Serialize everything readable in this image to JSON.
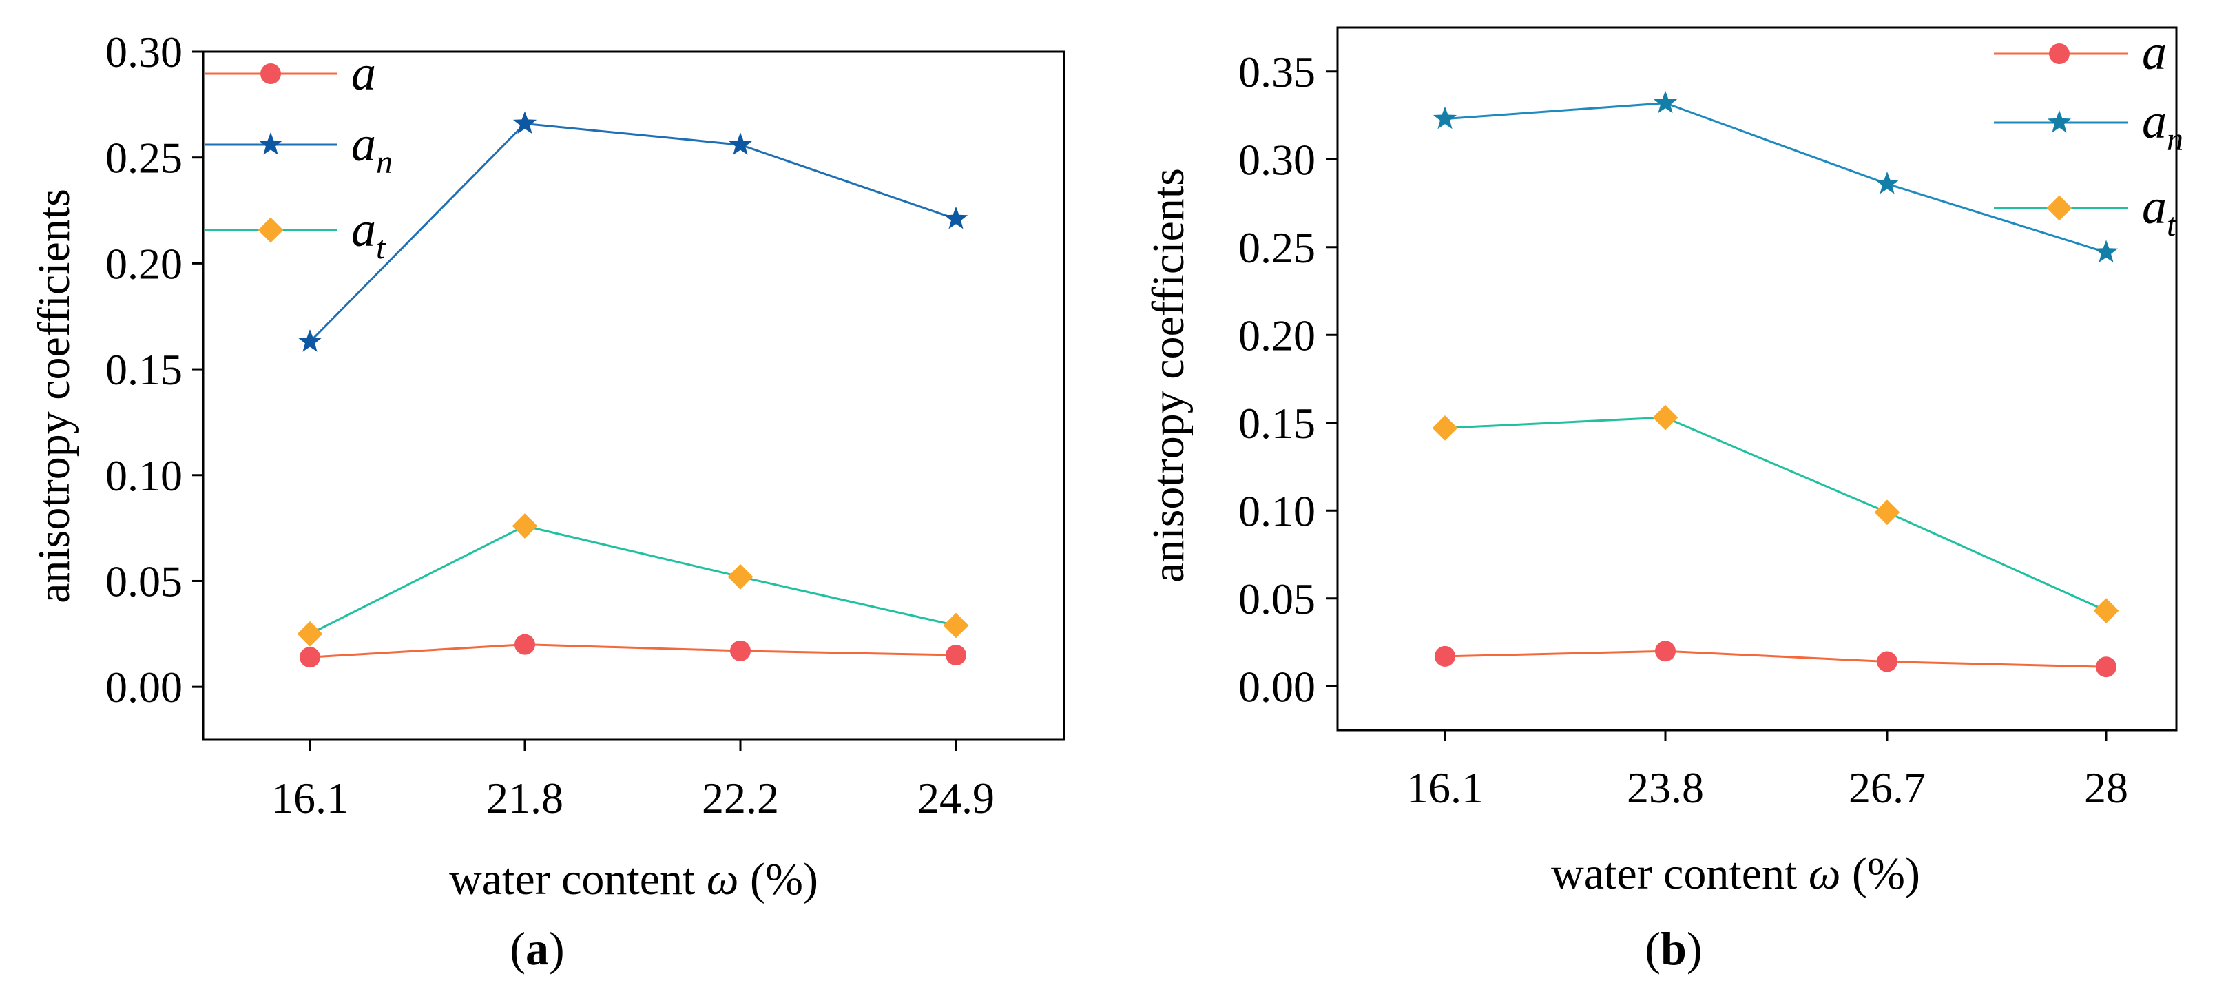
{
  "chart_data": [
    {
      "type": "line",
      "panel": "a",
      "categories": [
        "16.1",
        "21.8",
        "22.2",
        "24.9"
      ],
      "series": [
        {
          "name": "a",
          "sub": "",
          "color": "#f4683c",
          "marker_color": "#f2545b",
          "marker": "circle",
          "values": [
            0.014,
            0.02,
            0.017,
            0.015
          ]
        },
        {
          "name": "a",
          "sub": "n",
          "color": "#1f6fb4",
          "marker_color": "#0d57a3",
          "marker": "star",
          "values": [
            0.163,
            0.266,
            0.256,
            0.221
          ]
        },
        {
          "name": "a",
          "sub": "t",
          "color": "#20c0a0",
          "marker_color": "#f9a82b",
          "marker": "diamond",
          "values": [
            0.025,
            0.076,
            0.052,
            0.029
          ]
        }
      ],
      "yticks": [
        "0.00",
        "0.05",
        "0.10",
        "0.15",
        "0.20",
        "0.25",
        "0.30"
      ],
      "ylim": [
        -0.025,
        0.3
      ],
      "xlabel_prefix": "water content ",
      "xlabel_symbol": "ω",
      "xlabel_suffix": " (%)",
      "ylabel": "anisotropy coefficients",
      "caption_open": "(",
      "caption_letter": "a",
      "caption_close": ")",
      "legend_position": "top-left"
    },
    {
      "type": "line",
      "panel": "b",
      "categories": [
        "16.1",
        "23.8",
        "26.7",
        "28"
      ],
      "series": [
        {
          "name": "a",
          "sub": "",
          "color": "#f4683c",
          "marker_color": "#f2545b",
          "marker": "circle",
          "values": [
            0.017,
            0.02,
            0.014,
            0.011
          ]
        },
        {
          "name": "a",
          "sub": "n",
          "color": "#1f8ac0",
          "marker_color": "#137fa8",
          "marker": "star",
          "values": [
            0.323,
            0.332,
            0.286,
            0.247
          ]
        },
        {
          "name": "a",
          "sub": "t",
          "color": "#20c0a0",
          "marker_color": "#f9a82b",
          "marker": "diamond",
          "values": [
            0.147,
            0.153,
            0.099,
            0.043
          ]
        }
      ],
      "yticks": [
        "0.00",
        "0.05",
        "0.10",
        "0.15",
        "0.20",
        "0.25",
        "0.30",
        "0.35"
      ],
      "ylim": [
        -0.025,
        0.375
      ],
      "xlabel_prefix": "water content ",
      "xlabel_symbol": "ω",
      "xlabel_suffix": " (%)",
      "ylabel": "anisotropy coefficients",
      "caption_open": "(",
      "caption_letter": "b",
      "caption_close": ")",
      "legend_position": "top-right"
    }
  ]
}
